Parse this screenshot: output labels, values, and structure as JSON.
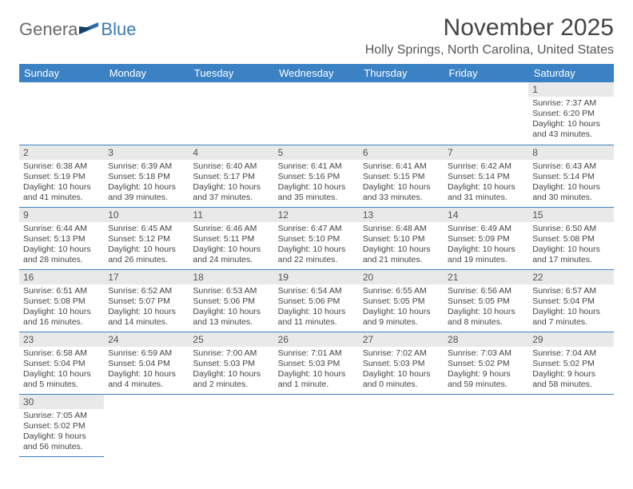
{
  "colors": {
    "header_bg": "#3b82c4",
    "header_text": "#ffffff",
    "daynum_bg": "#e9e9e9",
    "text": "#444444",
    "logo_gray": "#6a6a6a",
    "logo_blue": "#3a7ab8"
  },
  "logo": {
    "part1": "Genera",
    "part2": "Blue"
  },
  "title": "November 2025",
  "location": "Holly Springs, North Carolina, United States",
  "weekdays": [
    "Sunday",
    "Monday",
    "Tuesday",
    "Wednesday",
    "Thursday",
    "Friday",
    "Saturday"
  ],
  "first_day_index": 6,
  "days": [
    {
      "n": "1",
      "sunrise": "7:37 AM",
      "sunset": "6:20 PM",
      "daylight": "10 hours and 43 minutes."
    },
    {
      "n": "2",
      "sunrise": "6:38 AM",
      "sunset": "5:19 PM",
      "daylight": "10 hours and 41 minutes."
    },
    {
      "n": "3",
      "sunrise": "6:39 AM",
      "sunset": "5:18 PM",
      "daylight": "10 hours and 39 minutes."
    },
    {
      "n": "4",
      "sunrise": "6:40 AM",
      "sunset": "5:17 PM",
      "daylight": "10 hours and 37 minutes."
    },
    {
      "n": "5",
      "sunrise": "6:41 AM",
      "sunset": "5:16 PM",
      "daylight": "10 hours and 35 minutes."
    },
    {
      "n": "6",
      "sunrise": "6:41 AM",
      "sunset": "5:15 PM",
      "daylight": "10 hours and 33 minutes."
    },
    {
      "n": "7",
      "sunrise": "6:42 AM",
      "sunset": "5:14 PM",
      "daylight": "10 hours and 31 minutes."
    },
    {
      "n": "8",
      "sunrise": "6:43 AM",
      "sunset": "5:14 PM",
      "daylight": "10 hours and 30 minutes."
    },
    {
      "n": "9",
      "sunrise": "6:44 AM",
      "sunset": "5:13 PM",
      "daylight": "10 hours and 28 minutes."
    },
    {
      "n": "10",
      "sunrise": "6:45 AM",
      "sunset": "5:12 PM",
      "daylight": "10 hours and 26 minutes."
    },
    {
      "n": "11",
      "sunrise": "6:46 AM",
      "sunset": "5:11 PM",
      "daylight": "10 hours and 24 minutes."
    },
    {
      "n": "12",
      "sunrise": "6:47 AM",
      "sunset": "5:10 PM",
      "daylight": "10 hours and 22 minutes."
    },
    {
      "n": "13",
      "sunrise": "6:48 AM",
      "sunset": "5:10 PM",
      "daylight": "10 hours and 21 minutes."
    },
    {
      "n": "14",
      "sunrise": "6:49 AM",
      "sunset": "5:09 PM",
      "daylight": "10 hours and 19 minutes."
    },
    {
      "n": "15",
      "sunrise": "6:50 AM",
      "sunset": "5:08 PM",
      "daylight": "10 hours and 17 minutes."
    },
    {
      "n": "16",
      "sunrise": "6:51 AM",
      "sunset": "5:08 PM",
      "daylight": "10 hours and 16 minutes."
    },
    {
      "n": "17",
      "sunrise": "6:52 AM",
      "sunset": "5:07 PM",
      "daylight": "10 hours and 14 minutes."
    },
    {
      "n": "18",
      "sunrise": "6:53 AM",
      "sunset": "5:06 PM",
      "daylight": "10 hours and 13 minutes."
    },
    {
      "n": "19",
      "sunrise": "6:54 AM",
      "sunset": "5:06 PM",
      "daylight": "10 hours and 11 minutes."
    },
    {
      "n": "20",
      "sunrise": "6:55 AM",
      "sunset": "5:05 PM",
      "daylight": "10 hours and 9 minutes."
    },
    {
      "n": "21",
      "sunrise": "6:56 AM",
      "sunset": "5:05 PM",
      "daylight": "10 hours and 8 minutes."
    },
    {
      "n": "22",
      "sunrise": "6:57 AM",
      "sunset": "5:04 PM",
      "daylight": "10 hours and 7 minutes."
    },
    {
      "n": "23",
      "sunrise": "6:58 AM",
      "sunset": "5:04 PM",
      "daylight": "10 hours and 5 minutes."
    },
    {
      "n": "24",
      "sunrise": "6:59 AM",
      "sunset": "5:04 PM",
      "daylight": "10 hours and 4 minutes."
    },
    {
      "n": "25",
      "sunrise": "7:00 AM",
      "sunset": "5:03 PM",
      "daylight": "10 hours and 2 minutes."
    },
    {
      "n": "26",
      "sunrise": "7:01 AM",
      "sunset": "5:03 PM",
      "daylight": "10 hours and 1 minute."
    },
    {
      "n": "27",
      "sunrise": "7:02 AM",
      "sunset": "5:03 PM",
      "daylight": "10 hours and 0 minutes."
    },
    {
      "n": "28",
      "sunrise": "7:03 AM",
      "sunset": "5:02 PM",
      "daylight": "9 hours and 59 minutes."
    },
    {
      "n": "29",
      "sunrise": "7:04 AM",
      "sunset": "5:02 PM",
      "daylight": "9 hours and 58 minutes."
    },
    {
      "n": "30",
      "sunrise": "7:05 AM",
      "sunset": "5:02 PM",
      "daylight": "9 hours and 56 minutes."
    }
  ],
  "labels": {
    "sunrise": "Sunrise: ",
    "sunset": "Sunset: ",
    "daylight": "Daylight: "
  }
}
